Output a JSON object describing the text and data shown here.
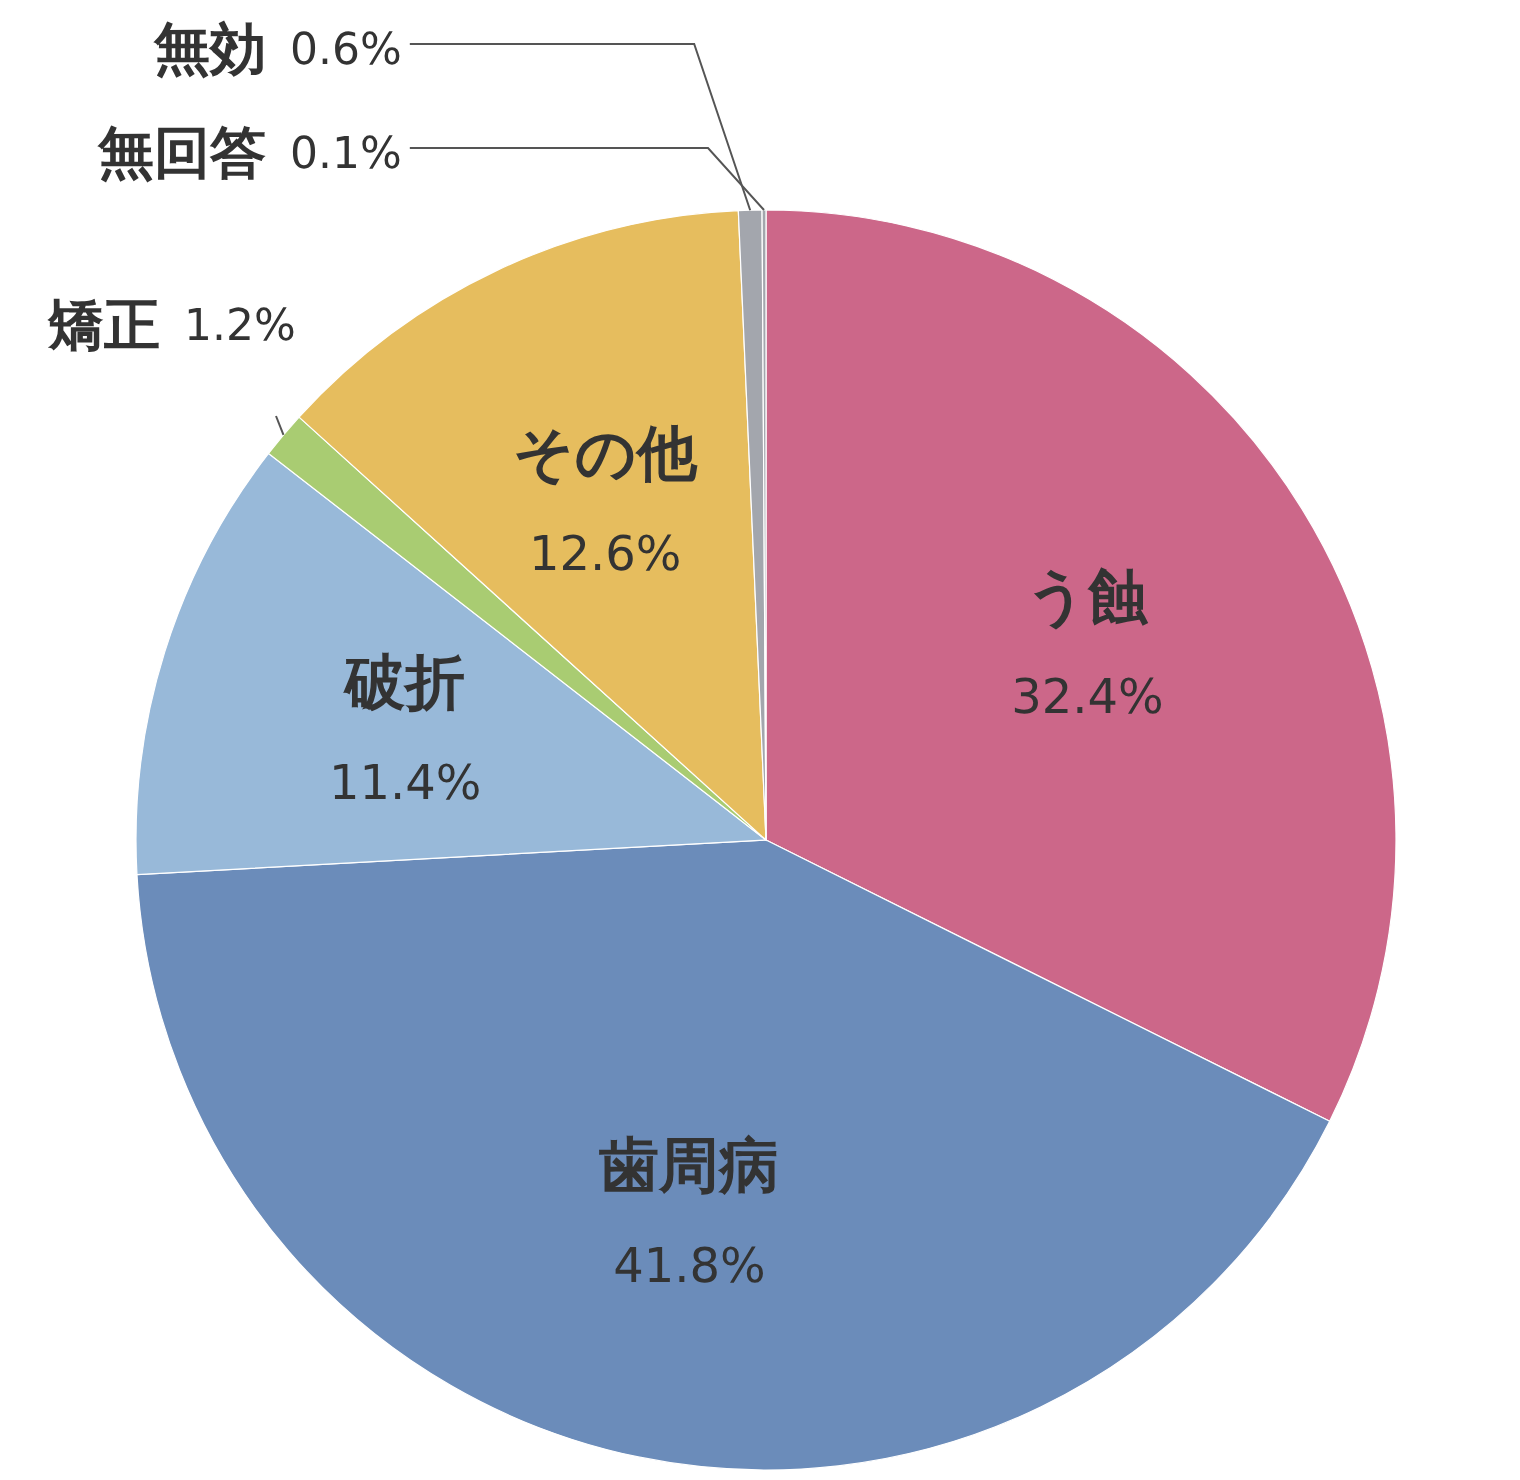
{
  "chart_data": {
    "type": "pie",
    "categories": [
      "う蝕",
      "歯周病",
      "破折",
      "矯正",
      "その他",
      "無効",
      "無回答"
    ],
    "values": [
      32.4,
      41.8,
      11.4,
      1.2,
      12.6,
      0.6,
      0.1
    ],
    "value_labels": [
      "32.4%",
      "41.8%",
      "11.4%",
      "1.2%",
      "12.6%",
      "0.6%",
      "0.1%"
    ],
    "colors": [
      "#cc6789",
      "#6b8cba",
      "#98b9d9",
      "#a9cc72",
      "#e6bd5e",
      "#a3a6ad",
      "#a3a6ad"
    ]
  }
}
